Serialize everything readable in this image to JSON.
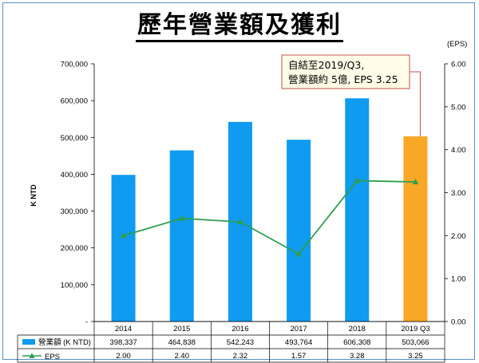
{
  "title": "歷年營業額及獲利",
  "y_left_label": "K NTD",
  "y_right_label": "(EPS)",
  "left_ticks": [
    "-",
    "100,000",
    "200,000",
    "300,000",
    "400,000",
    "500,000",
    "600,000",
    "700,000"
  ],
  "right_ticks": [
    "0.00",
    "1.00",
    "2.00",
    "3.00",
    "4.00",
    "5.00",
    "6.00"
  ],
  "callout": {
    "line1": "自結至2019/Q3,",
    "line2": "營業額約 5億, EPS 3.25"
  },
  "table": {
    "row1_label": "營業額 (K NTD)",
    "row2_label": "EPS",
    "revenue_text": [
      "398,337",
      "464,838",
      "542,243",
      "493,764",
      "606,308",
      "503,066"
    ],
    "eps_text": [
      "2.00",
      "2.40",
      "2.32",
      "1.57",
      "3.28",
      "3.25"
    ]
  },
  "colors": {
    "bar": "#0f9bef",
    "bar_highlight": "#f9a825",
    "eps_line": "#2e9e4f",
    "callout_border": "#c0504d",
    "callout_fill": "#fffde7"
  },
  "chart_data": {
    "type": "bar",
    "categories": [
      "2014",
      "2015",
      "2016",
      "2017",
      "2018",
      "2019 Q3"
    ],
    "series": [
      {
        "name": "營業額 (K NTD)",
        "type": "bar",
        "axis": "left",
        "values": [
          398337,
          464838,
          542243,
          493764,
          606308,
          503066
        ]
      },
      {
        "name": "EPS",
        "type": "line",
        "axis": "right",
        "values": [
          2.0,
          2.4,
          2.32,
          1.57,
          3.28,
          3.25
        ]
      }
    ],
    "ylim_left": [
      0,
      700000
    ],
    "ylim_right": [
      0,
      6
    ],
    "grid": false,
    "legend": "table-below"
  }
}
